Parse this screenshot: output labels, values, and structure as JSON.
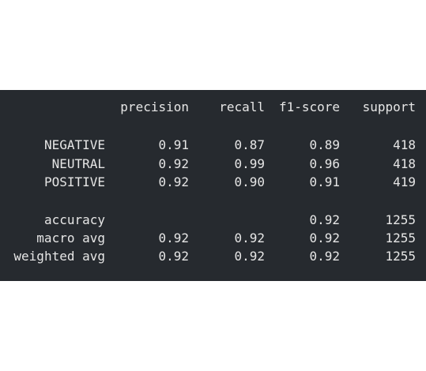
{
  "report": {
    "header": {
      "label": "",
      "precision": "precision",
      "recall": "recall",
      "f1": "f1-score",
      "support": "support"
    },
    "classes": [
      {
        "label": "NEGATIVE",
        "precision": "0.91",
        "recall": "0.87",
        "f1": "0.89",
        "support": "418"
      },
      {
        "label": "NEUTRAL",
        "precision": "0.92",
        "recall": "0.99",
        "f1": "0.96",
        "support": "418"
      },
      {
        "label": "POSITIVE",
        "precision": "0.92",
        "recall": "0.90",
        "f1": "0.91",
        "support": "419"
      }
    ],
    "summary": [
      {
        "label": "accuracy",
        "precision": "",
        "recall": "",
        "f1": "0.92",
        "support": "1255"
      },
      {
        "label": "macro avg",
        "precision": "0.92",
        "recall": "0.92",
        "f1": "0.92",
        "support": "1255"
      },
      {
        "label": "weighted avg",
        "precision": "0.92",
        "recall": "0.92",
        "f1": "0.92",
        "support": "1255"
      }
    ]
  },
  "colors": {
    "panel_background": "#262a2f",
    "text": "#e6e6e6",
    "page_background": "#ffffff"
  }
}
